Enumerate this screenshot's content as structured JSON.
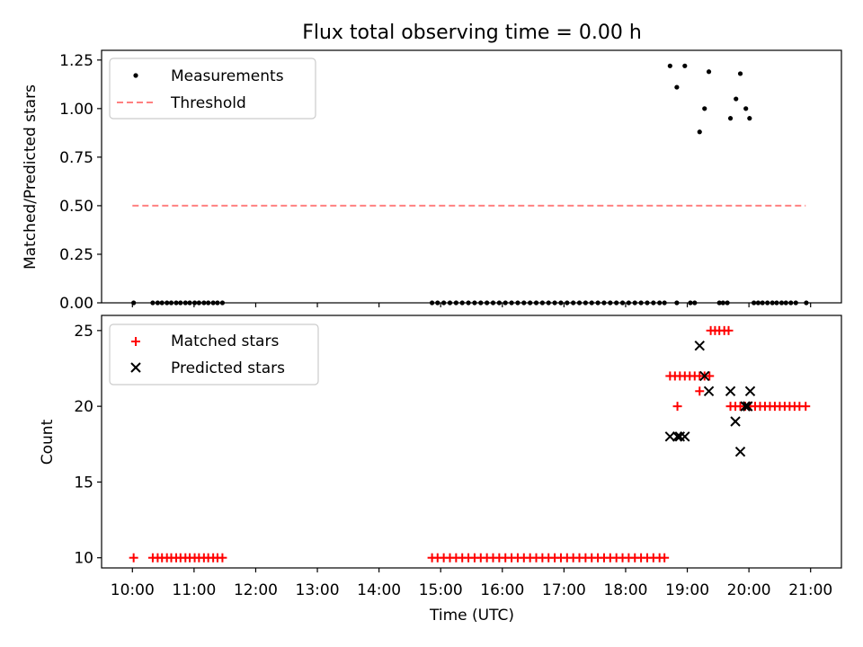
{
  "chart_data": [
    {
      "type": "scatter",
      "title": "Flux total observing time = 0.00 h",
      "ylabel": "Matched/Predicted stars",
      "xlabel": "",
      "ylim": [
        0,
        1.3
      ],
      "xlim": [
        9.5,
        21.5
      ],
      "yticks": [
        0,
        0.25,
        0.5,
        0.75,
        1.0,
        1.25
      ],
      "ytick_labels": [
        "0.00",
        "0.25",
        "0.50",
        "0.75",
        "1.00",
        "1.25"
      ],
      "show_x_tick_labels": false,
      "grid": false,
      "legend_position": "top-left",
      "legend": [
        "Measurements",
        "Threshold"
      ],
      "series": [
        {
          "name": "Measurements",
          "marker": "dot",
          "color": "#000000",
          "points": [
            [
              10.02,
              0
            ],
            [
              10.33,
              0
            ],
            [
              10.41,
              0
            ],
            [
              10.48,
              0
            ],
            [
              10.56,
              0
            ],
            [
              10.63,
              0
            ],
            [
              10.71,
              0
            ],
            [
              10.78,
              0
            ],
            [
              10.86,
              0
            ],
            [
              10.93,
              0
            ],
            [
              11.01,
              0
            ],
            [
              11.08,
              0
            ],
            [
              11.16,
              0
            ],
            [
              11.23,
              0
            ],
            [
              11.31,
              0
            ],
            [
              11.38,
              0
            ],
            [
              11.46,
              0
            ],
            [
              14.86,
              0
            ],
            [
              14.95,
              0
            ],
            [
              15.05,
              0
            ],
            [
              15.15,
              0
            ],
            [
              15.25,
              0
            ],
            [
              15.35,
              0
            ],
            [
              15.45,
              0
            ],
            [
              15.55,
              0
            ],
            [
              15.65,
              0
            ],
            [
              15.75,
              0
            ],
            [
              15.85,
              0
            ],
            [
              15.95,
              0
            ],
            [
              16.05,
              0
            ],
            [
              16.15,
              0
            ],
            [
              16.25,
              0
            ],
            [
              16.35,
              0
            ],
            [
              16.45,
              0
            ],
            [
              16.55,
              0
            ],
            [
              16.65,
              0
            ],
            [
              16.75,
              0
            ],
            [
              16.85,
              0
            ],
            [
              16.95,
              0
            ],
            [
              17.05,
              0
            ],
            [
              17.15,
              0
            ],
            [
              17.25,
              0
            ],
            [
              17.35,
              0
            ],
            [
              17.45,
              0
            ],
            [
              17.55,
              0
            ],
            [
              17.65,
              0
            ],
            [
              17.75,
              0
            ],
            [
              17.85,
              0
            ],
            [
              17.95,
              0
            ],
            [
              18.05,
              0
            ],
            [
              18.15,
              0
            ],
            [
              18.25,
              0
            ],
            [
              18.35,
              0
            ],
            [
              18.45,
              0
            ],
            [
              18.55,
              0
            ],
            [
              18.63,
              0
            ],
            [
              18.83,
              0
            ],
            [
              19.05,
              0
            ],
            [
              19.12,
              0
            ],
            [
              19.52,
              0
            ],
            [
              19.58,
              0
            ],
            [
              19.65,
              0
            ],
            [
              20.08,
              0
            ],
            [
              20.15,
              0
            ],
            [
              20.22,
              0
            ],
            [
              20.3,
              0
            ],
            [
              20.38,
              0
            ],
            [
              20.45,
              0
            ],
            [
              20.53,
              0
            ],
            [
              20.6,
              0
            ],
            [
              20.68,
              0
            ],
            [
              20.76,
              0
            ],
            [
              20.93,
              0
            ],
            [
              18.72,
              1.22
            ],
            [
              18.83,
              1.11
            ],
            [
              18.96,
              1.22
            ],
            [
              19.2,
              0.88
            ],
            [
              19.28,
              1.0
            ],
            [
              19.35,
              1.19
            ],
            [
              19.7,
              0.95
            ],
            [
              19.79,
              1.05
            ],
            [
              19.86,
              1.18
            ],
            [
              19.95,
              1.0
            ],
            [
              20.01,
              0.95
            ]
          ]
        },
        {
          "name": "Threshold",
          "style": "dashed",
          "color": "#ff8080",
          "x": [
            10.0,
            20.92
          ],
          "y": [
            0.5,
            0.5
          ]
        }
      ]
    },
    {
      "type": "scatter",
      "title": "",
      "ylabel": "Count",
      "xlabel": "Time (UTC)",
      "ylim": [
        9.33,
        26.0
      ],
      "xlim": [
        9.5,
        21.5
      ],
      "yticks": [
        10,
        15,
        20,
        25
      ],
      "ytick_labels": [
        "10",
        "15",
        "20",
        "25"
      ],
      "xticks": [
        10,
        11,
        12,
        13,
        14,
        15,
        16,
        17,
        18,
        19,
        20,
        21
      ],
      "xtick_labels": [
        "10:00",
        "11:00",
        "12:00",
        "13:00",
        "14:00",
        "15:00",
        "16:00",
        "17:00",
        "18:00",
        "19:00",
        "20:00",
        "21:00"
      ],
      "grid": false,
      "legend_position": "top-left",
      "legend": [
        "Matched stars",
        "Predicted stars"
      ],
      "series": [
        {
          "name": "Matched stars",
          "marker": "plus",
          "color": "#ff0000",
          "points": [
            [
              10.02,
              10
            ],
            [
              10.33,
              10
            ],
            [
              10.41,
              10
            ],
            [
              10.48,
              10
            ],
            [
              10.56,
              10
            ],
            [
              10.63,
              10
            ],
            [
              10.71,
              10
            ],
            [
              10.78,
              10
            ],
            [
              10.86,
              10
            ],
            [
              10.93,
              10
            ],
            [
              11.01,
              10
            ],
            [
              11.08,
              10
            ],
            [
              11.16,
              10
            ],
            [
              11.23,
              10
            ],
            [
              11.31,
              10
            ],
            [
              11.38,
              10
            ],
            [
              11.46,
              10
            ],
            [
              14.86,
              10
            ],
            [
              14.95,
              10
            ],
            [
              15.05,
              10
            ],
            [
              15.15,
              10
            ],
            [
              15.25,
              10
            ],
            [
              15.35,
              10
            ],
            [
              15.45,
              10
            ],
            [
              15.55,
              10
            ],
            [
              15.65,
              10
            ],
            [
              15.75,
              10
            ],
            [
              15.85,
              10
            ],
            [
              15.95,
              10
            ],
            [
              16.05,
              10
            ],
            [
              16.15,
              10
            ],
            [
              16.25,
              10
            ],
            [
              16.35,
              10
            ],
            [
              16.45,
              10
            ],
            [
              16.55,
              10
            ],
            [
              16.65,
              10
            ],
            [
              16.75,
              10
            ],
            [
              16.85,
              10
            ],
            [
              16.95,
              10
            ],
            [
              17.05,
              10
            ],
            [
              17.15,
              10
            ],
            [
              17.25,
              10
            ],
            [
              17.35,
              10
            ],
            [
              17.45,
              10
            ],
            [
              17.55,
              10
            ],
            [
              17.65,
              10
            ],
            [
              17.75,
              10
            ],
            [
              17.85,
              10
            ],
            [
              17.95,
              10
            ],
            [
              18.05,
              10
            ],
            [
              18.15,
              10
            ],
            [
              18.25,
              10
            ],
            [
              18.35,
              10
            ],
            [
              18.45,
              10
            ],
            [
              18.55,
              10
            ],
            [
              18.63,
              10
            ],
            [
              18.72,
              22
            ],
            [
              18.8,
              22
            ],
            [
              18.88,
              22
            ],
            [
              18.96,
              22
            ],
            [
              19.04,
              22
            ],
            [
              19.12,
              22
            ],
            [
              19.2,
              22
            ],
            [
              19.28,
              22
            ],
            [
              19.36,
              22
            ],
            [
              18.84,
              20
            ],
            [
              19.2,
              21
            ],
            [
              19.38,
              25
            ],
            [
              19.45,
              25
            ],
            [
              19.52,
              25
            ],
            [
              19.6,
              25
            ],
            [
              19.67,
              25
            ],
            [
              19.7,
              20
            ],
            [
              19.78,
              20
            ],
            [
              19.86,
              20
            ],
            [
              19.94,
              20
            ],
            [
              20.02,
              20
            ],
            [
              20.1,
              20
            ],
            [
              20.18,
              20
            ],
            [
              20.26,
              20
            ],
            [
              20.34,
              20
            ],
            [
              20.42,
              20
            ],
            [
              20.5,
              20
            ],
            [
              20.58,
              20
            ],
            [
              20.66,
              20
            ],
            [
              20.74,
              20
            ],
            [
              20.82,
              20
            ],
            [
              20.92,
              20
            ]
          ]
        },
        {
          "name": "Predicted stars",
          "marker": "cross",
          "color": "#000000",
          "points": [
            [
              18.72,
              18
            ],
            [
              18.84,
              18
            ],
            [
              18.88,
              18
            ],
            [
              18.96,
              18
            ],
            [
              19.2,
              24
            ],
            [
              19.28,
              22
            ],
            [
              19.35,
              21
            ],
            [
              19.7,
              21
            ],
            [
              19.78,
              19
            ],
            [
              19.86,
              17
            ],
            [
              19.94,
              20
            ],
            [
              19.98,
              20
            ],
            [
              20.02,
              21
            ]
          ]
        }
      ]
    }
  ]
}
